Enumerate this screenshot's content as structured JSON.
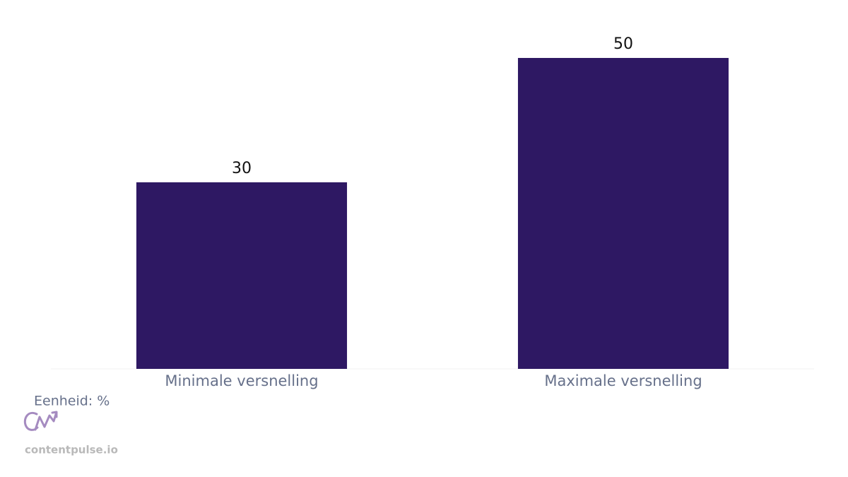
{
  "chart_data": {
    "type": "bar",
    "categories": [
      "Minimale versnelling",
      "Maximale versnelling"
    ],
    "values": [
      30,
      50
    ],
    "color": "#2e1863",
    "ylim": [
      0,
      50
    ],
    "grid": false,
    "unit_note": "Eenheid: %",
    "watermark": "contentpulse.io"
  }
}
